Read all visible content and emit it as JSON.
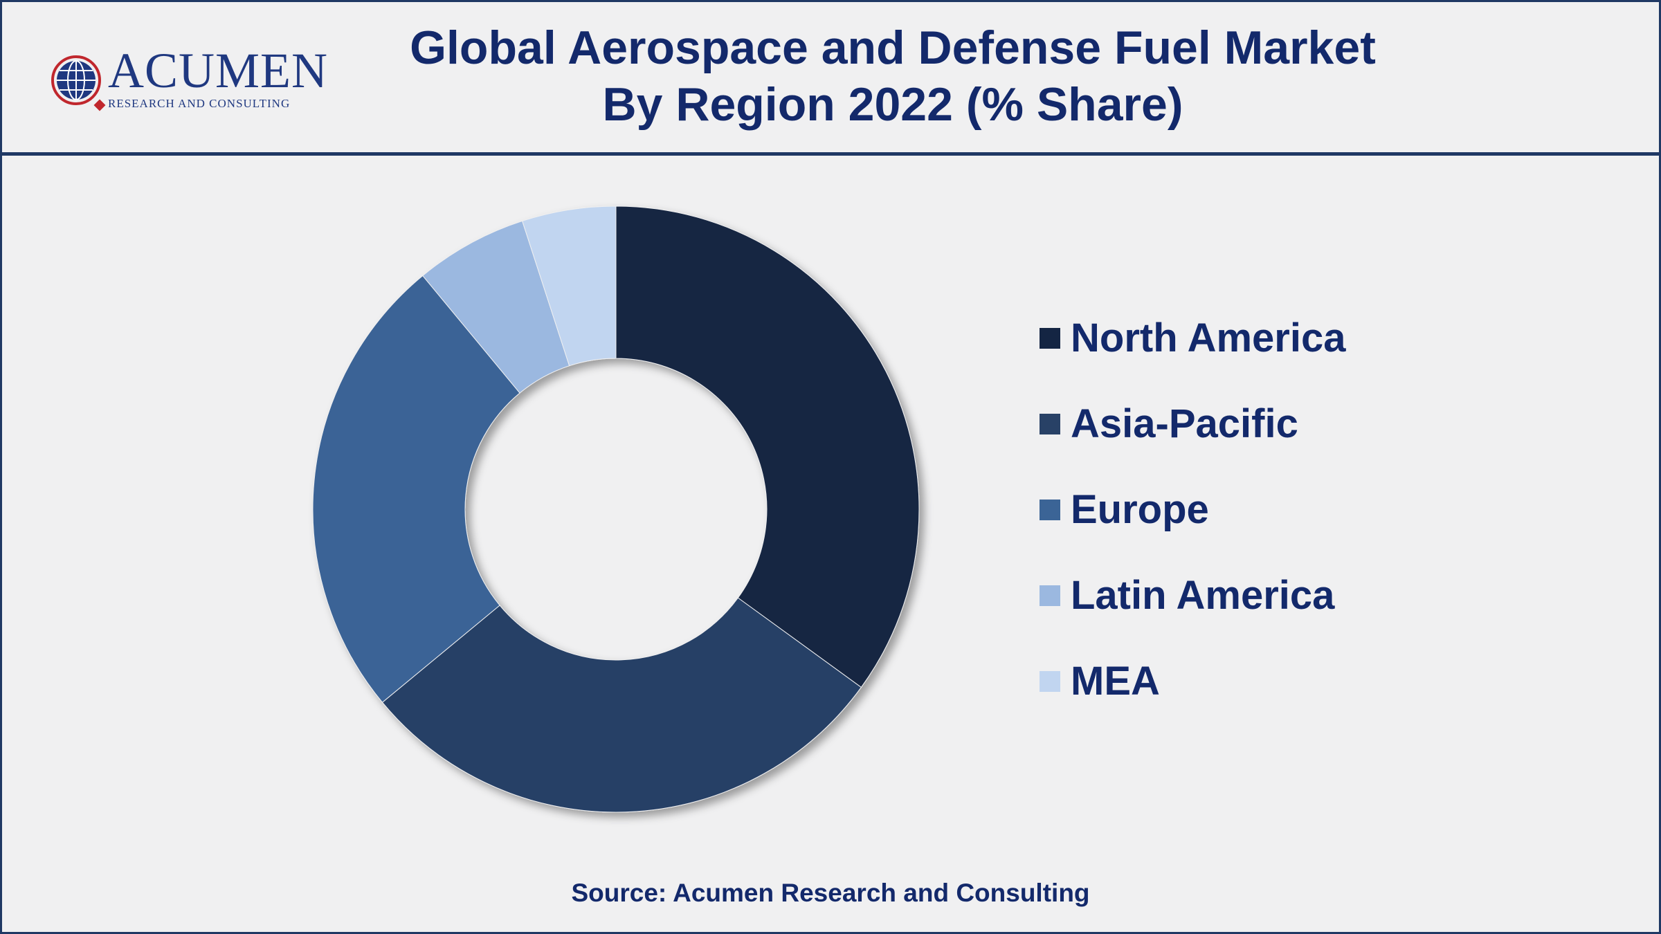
{
  "header": {
    "title_line1": "Global Aerospace and Defense Fuel Market",
    "title_line2": "By Region 2022 (% Share)",
    "logo_word": "ACUMEN",
    "logo_sub": "RESEARCH AND CONSULTING"
  },
  "footer": {
    "source": "Source: Acumen Research and Consulting"
  },
  "chart_data": {
    "type": "pie",
    "variant": "donut",
    "title": "Global Aerospace and Defense Fuel Market By Region 2022 (% Share)",
    "categories": [
      "North America",
      "Asia-Pacific",
      "Europe",
      "Latin America",
      "MEA"
    ],
    "values": [
      35,
      29,
      25,
      6,
      5
    ],
    "colors": [
      "#142543",
      "#284166",
      "#3b6496",
      "#9bb8e0",
      "#c1d5f0"
    ],
    "legend_position": "right",
    "data_labels": false
  }
}
